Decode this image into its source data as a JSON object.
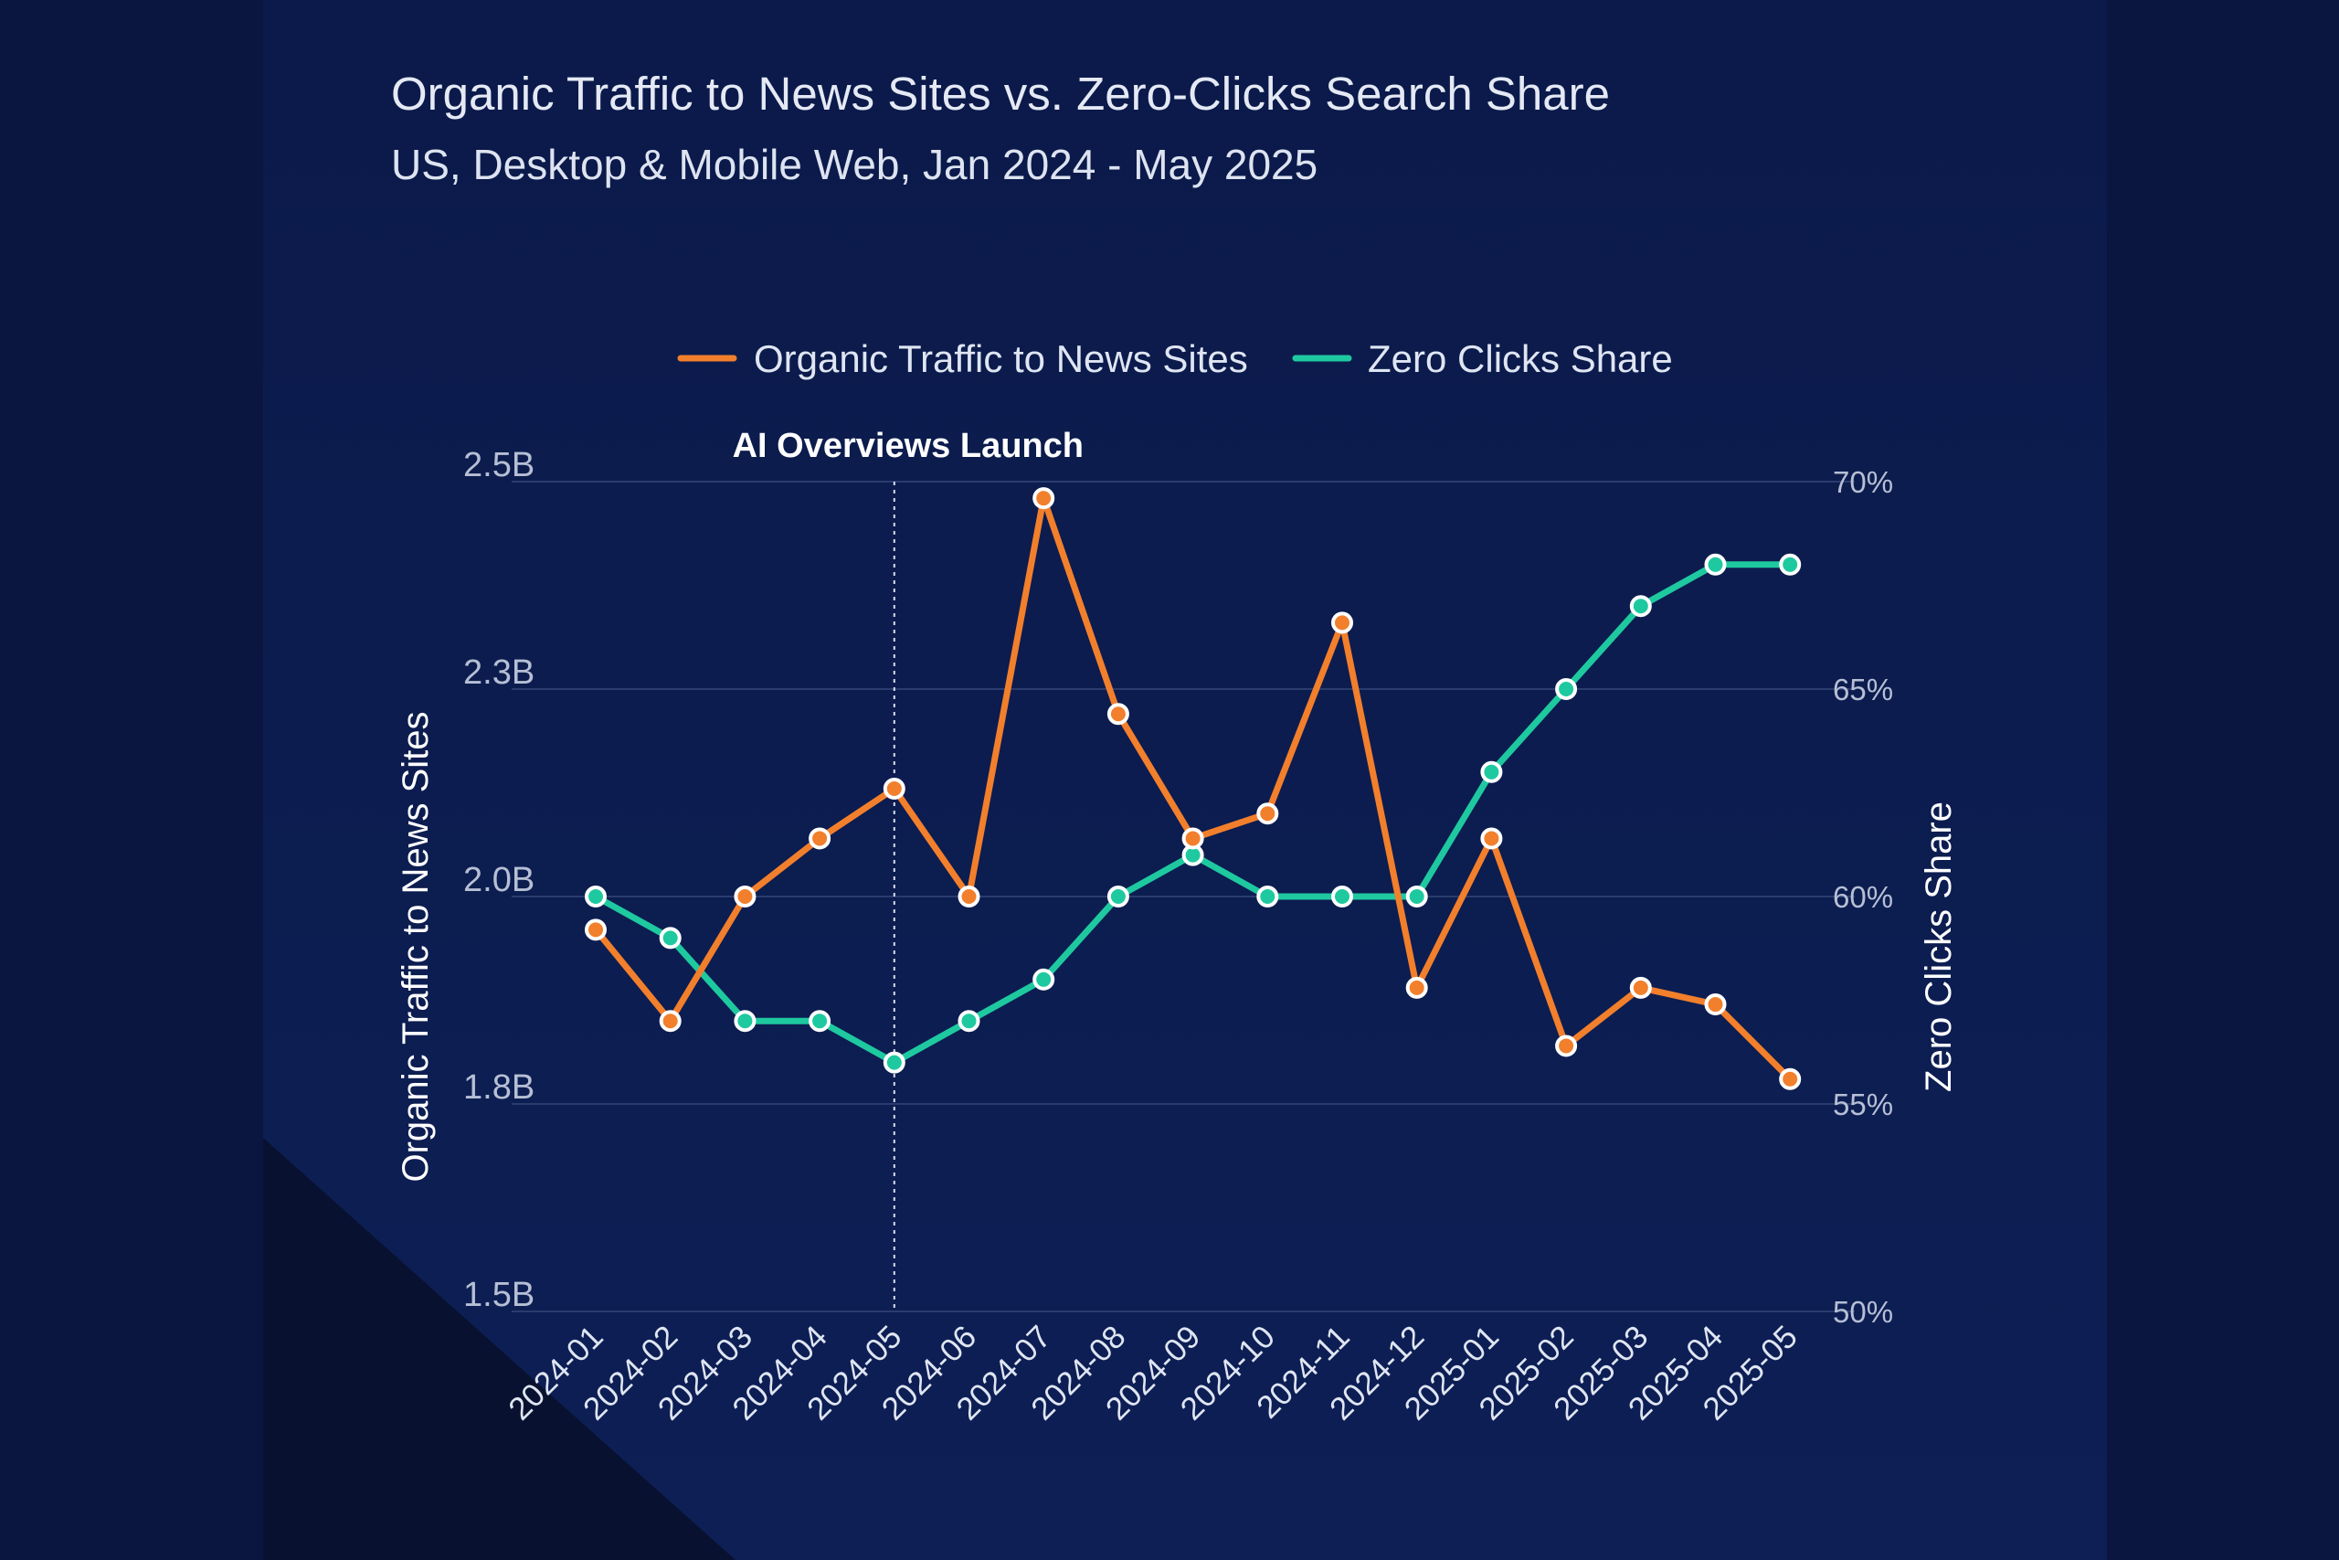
{
  "colors": {
    "background": "#0a1640",
    "card": "#0b1b4d",
    "traffic": "#f27f2c",
    "zero_clicks": "#1ec9a0",
    "grid": "#2a3b6e"
  },
  "chart_data": {
    "type": "line",
    "title": "Organic Traffic to News Sites vs. Zero-Clicks Search Share",
    "subtitle": "US, Desktop & Mobile Web, Jan 2024 - May 2025",
    "categories": [
      "2024-01",
      "2024-02",
      "2024-03",
      "2024-04",
      "2024-05",
      "2024-06",
      "2024-07",
      "2024-08",
      "2024-09",
      "2024-10",
      "2024-11",
      "2024-12",
      "2025-01",
      "2025-02",
      "2025-03",
      "2025-04",
      "2025-05"
    ],
    "series": [
      {
        "name": "Organic Traffic to News Sites",
        "axis": "left",
        "values": [
          1.96,
          1.85,
          2.0,
          2.07,
          2.13,
          2.0,
          2.48,
          2.22,
          2.07,
          2.1,
          2.33,
          1.89,
          2.07,
          1.82,
          1.89,
          1.87,
          1.78
        ]
      },
      {
        "name": "Zero Clicks Share",
        "axis": "right",
        "values": [
          60,
          59,
          57,
          57,
          56,
          57,
          58,
          60,
          61,
          60,
          60,
          60,
          63,
          65,
          67,
          68,
          68
        ]
      }
    ],
    "ylabel_left": "Organic Traffic to News Sites",
    "ylabel_right": "Zero Clicks Share",
    "ylim_left": [
      1.5,
      2.5
    ],
    "ylim_right": [
      50,
      70
    ],
    "yticks_left": [
      "1.5B",
      "1.8B",
      "2.0B",
      "2.3B",
      "2.5B"
    ],
    "yticks_left_values": [
      1.5,
      1.75,
      2.0,
      2.25,
      2.5
    ],
    "yticks_right": [
      "50%",
      "55%",
      "60%",
      "65%",
      "70%"
    ],
    "yticks_right_values": [
      50,
      55,
      60,
      65,
      70
    ],
    "grid": true,
    "legend_position": "top-center",
    "annotation": {
      "label": "AI Overviews Launch",
      "category": "2024-05"
    }
  }
}
